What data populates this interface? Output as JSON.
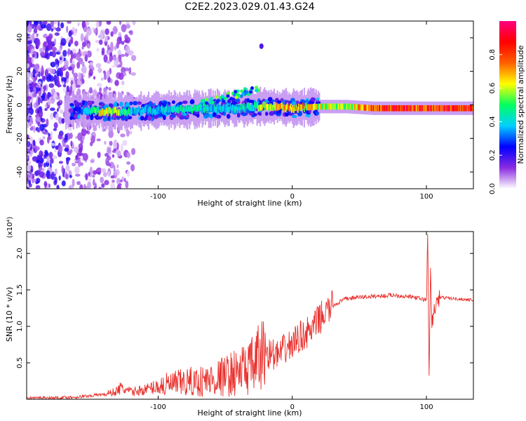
{
  "figure_title": "C2E2.2023.029.01.43.G24",
  "chart_data": [
    {
      "type": "heatmap",
      "title": "",
      "xlabel": "Height of straight line (km)",
      "ylabel": "Frequency (Hz)",
      "xlim": [
        -198,
        135
      ],
      "ylim": [
        -50,
        50
      ],
      "x_ticks": [
        -100,
        0,
        100
      ],
      "y_ticks": [
        -40,
        -20,
        0,
        20,
        40
      ],
      "grid": false,
      "colorbar": {
        "label": "Normalized spectral amplitude",
        "range": [
          0,
          1
        ],
        "ticks": [
          0.0,
          0.2,
          0.4,
          0.6,
          0.8
        ],
        "colors": [
          "#ffffff",
          "#8a2be2",
          "#0000ff",
          "#00d0ff",
          "#00ff60",
          "#ffff00",
          "#ff6000",
          "#ff0000",
          "#ff007f"
        ]
      },
      "ridge": {
        "x": [
          -160,
          -140,
          -120,
          -100,
          -80,
          -60,
          -50,
          -40,
          -30,
          -20,
          -10,
          0,
          20,
          40,
          60,
          80,
          90,
          100,
          110,
          135
        ],
        "freq": [
          -3,
          -4,
          -4,
          -3,
          -3,
          -2,
          -2,
          -2,
          -1,
          -1,
          -1,
          -2,
          -1,
          -1,
          -2,
          -2,
          -2,
          -2,
          -2,
          -2
        ],
        "amplitude": [
          0.25,
          0.75,
          0.45,
          0.4,
          0.5,
          0.45,
          0.4,
          0.45,
          0.5,
          0.7,
          0.75,
          0.8,
          0.7,
          0.6,
          0.95,
          0.95,
          0.9,
          0.95,
          0.95,
          1.0
        ]
      }
    },
    {
      "type": "line",
      "title": "",
      "xlabel": "Height of straight line (km)",
      "ylabel": "SNR (10 * v/v)",
      "y_multiplier": "(x10⁴)",
      "xlim": [
        -198,
        135
      ],
      "ylim": [
        0,
        2.3
      ],
      "x_ticks": [
        -100,
        0,
        100
      ],
      "y_ticks": [
        0.5,
        1.0,
        1.5,
        2.0
      ],
      "grid": false,
      "line_color": "#e8302c",
      "series": [
        {
          "x": [
            -198,
            -180,
            -160,
            -150,
            -140,
            -132,
            -128,
            -120,
            -110,
            -100,
            -90,
            -80,
            -70,
            -60,
            -50,
            -40,
            -30,
            -25,
            -20,
            -15,
            -10,
            -5,
            0,
            5,
            10,
            15,
            20,
            30,
            40,
            50,
            60,
            70,
            75,
            80,
            90,
            95,
            100,
            101,
            102,
            103,
            104,
            106,
            110,
            120,
            135
          ],
          "y": [
            0.02,
            0.02,
            0.03,
            0.05,
            0.07,
            0.1,
            0.15,
            0.1,
            0.13,
            0.18,
            0.2,
            0.23,
            0.24,
            0.27,
            0.32,
            0.38,
            0.45,
            0.55,
            0.65,
            0.62,
            0.6,
            0.7,
            0.75,
            0.85,
            0.9,
            0.95,
            1.1,
            1.28,
            1.38,
            1.4,
            1.41,
            1.42,
            1.43,
            1.42,
            1.4,
            1.38,
            1.36,
            2.25,
            0.3,
            1.7,
            1.0,
            1.25,
            1.4,
            1.38,
            1.36
          ]
        }
      ]
    }
  ]
}
